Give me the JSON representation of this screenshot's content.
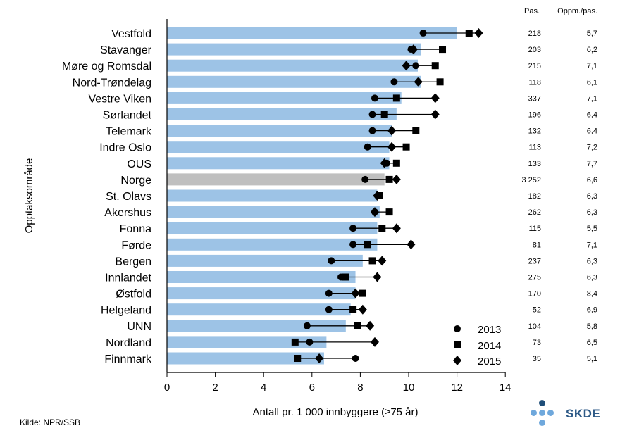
{
  "chart_data": {
    "type": "bar",
    "title": "",
    "xlabel": "Antall pr. 1 000 innbyggere (≥75 år)",
    "ylabel": "Opptaksområde",
    "xlim": [
      0,
      14
    ],
    "xticks": [
      0,
      2,
      4,
      6,
      8,
      10,
      12,
      14
    ],
    "grid": false,
    "colors": {
      "bar": "#9dc3e6",
      "highlight_bar": "#bfbfbf",
      "marker": "#000000"
    },
    "highlight_category": "Norge",
    "column_headers": {
      "patients": "Pas.",
      "opp_per_pat": "Oppm./pas."
    },
    "categories": [
      "Vestfold",
      "Stavanger",
      "Møre og Romsdal",
      "Nord-Trøndelag",
      "Vestre Viken",
      "Sørlandet",
      "Telemark",
      "Indre Oslo",
      "OUS",
      "Norge",
      "St. Olavs",
      "Akershus",
      "Fonna",
      "Førde",
      "Bergen",
      "Innlandet",
      "Østfold",
      "Helgeland",
      "UNN",
      "Nordland",
      "Finnmark"
    ],
    "values": [
      12.0,
      10.5,
      10.4,
      10.5,
      9.7,
      9.5,
      9.3,
      9.2,
      9.2,
      9.0,
      8.7,
      8.8,
      8.7,
      8.7,
      8.1,
      7.8,
      7.8,
      7.6,
      7.4,
      6.6,
      6.5
    ],
    "series": [
      {
        "name": "2013",
        "marker": "circle",
        "values": [
          10.6,
          10.1,
          10.3,
          9.4,
          8.6,
          8.5,
          8.5,
          8.3,
          9.1,
          8.2,
          8.8,
          8.6,
          7.7,
          7.7,
          6.8,
          7.2,
          6.7,
          6.7,
          5.8,
          5.9,
          7.8
        ]
      },
      {
        "name": "2014",
        "marker": "square",
        "values": [
          12.5,
          11.4,
          11.1,
          11.3,
          9.5,
          9.0,
          10.3,
          9.9,
          9.5,
          9.2,
          8.8,
          9.2,
          8.9,
          8.3,
          8.5,
          7.4,
          8.1,
          7.7,
          7.9,
          5.3,
          5.4
        ]
      },
      {
        "name": "2015",
        "marker": "diamond",
        "values": [
          12.9,
          10.2,
          9.9,
          10.4,
          11.1,
          11.1,
          9.3,
          9.3,
          9.0,
          9.5,
          8.7,
          8.6,
          9.5,
          10.1,
          8.9,
          8.7,
          7.8,
          8.1,
          8.4,
          8.6,
          6.3
        ]
      }
    ],
    "patients": [
      "218",
      "203",
      "215",
      "118",
      "337",
      "196",
      "132",
      "113",
      "133",
      "3 252",
      "182",
      "262",
      "115",
      "81",
      "237",
      "275",
      "170",
      "52",
      "104",
      "73",
      "35"
    ],
    "opp_per_pat": [
      "5,7",
      "6,2",
      "7,1",
      "6,1",
      "7,1",
      "6,4",
      "6,4",
      "7,2",
      "7,7",
      "6,6",
      "6,3",
      "6,3",
      "5,5",
      "7,1",
      "6,3",
      "6,3",
      "8,4",
      "6,9",
      "5,8",
      "6,5",
      "5,1"
    ]
  },
  "footer": {
    "source": "Kilde: NPR/SSB",
    "logo_text": "SKDE"
  }
}
